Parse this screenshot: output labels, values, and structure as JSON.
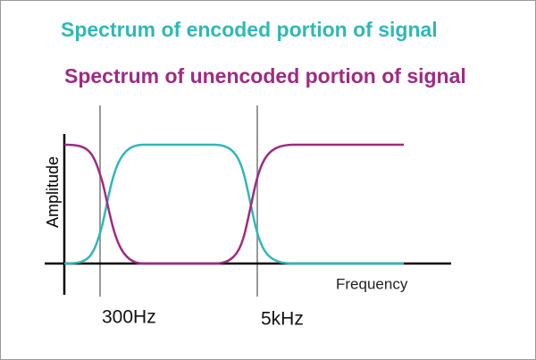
{
  "legend": {
    "encoded": "Spectrum of encoded portion of signal",
    "unencoded": "Spectrum of unencoded portion of signal"
  },
  "axes": {
    "y_label": "Amplitude",
    "x_label": "Frequency"
  },
  "markers": [
    "300Hz",
    "5kHz"
  ]
}
